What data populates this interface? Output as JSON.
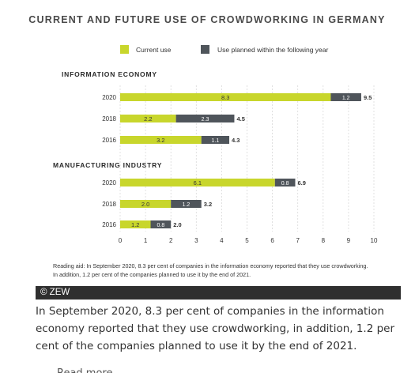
{
  "chart_data": {
    "type": "bar",
    "orientation": "horizontal",
    "stacked": true,
    "title": "CURRENT AND FUTURE USE OF CROWDWORKING IN GERMANY",
    "legend": {
      "position": "top",
      "entries": [
        "Current use",
        "Use planned within the following year"
      ]
    },
    "colors": {
      "current": "#c8d62c",
      "planned": "#4f555b"
    },
    "xlim": [
      0,
      10
    ],
    "x_ticks": [
      "0",
      "1",
      "2",
      "3",
      "4",
      "5",
      "6",
      "7",
      "8",
      "9",
      "10"
    ],
    "grid": true,
    "groups": [
      {
        "name": "INFORMATION ECONOMY",
        "bars": [
          {
            "category": "2020",
            "current": 8.3,
            "planned": 1.2,
            "total": 9.5,
            "current_label": "8.3",
            "planned_label": "1.2",
            "total_label": "9.5"
          },
          {
            "category": "2018",
            "current": 2.2,
            "planned": 2.3,
            "total": 4.5,
            "current_label": "2.2",
            "planned_label": "2.3",
            "total_label": "4.5"
          },
          {
            "category": "2016",
            "current": 3.2,
            "planned": 1.1,
            "total": 4.3,
            "current_label": "3.2",
            "planned_label": "1.1",
            "total_label": "4.3"
          }
        ]
      },
      {
        "name": "MANUFACTURING INDUSTRY",
        "bars": [
          {
            "category": "2020",
            "current": 6.1,
            "planned": 0.8,
            "total": 6.9,
            "current_label": "6.1",
            "planned_label": "0.8",
            "total_label": "6.9"
          },
          {
            "category": "2018",
            "current": 2.0,
            "planned": 1.2,
            "total": 3.2,
            "current_label": "2.0",
            "planned_label": "1.2",
            "total_label": "3.2"
          },
          {
            "category": "2016",
            "current": 1.2,
            "planned": 0.8,
            "total": 2.0,
            "current_label": "1.2",
            "planned_label": "0.8",
            "total_label": "2.0"
          }
        ]
      }
    ],
    "reading_aid": [
      "Reading aid: In September 2020, 8.3 per cent of companies in the information economy reported that they use crowdworking.",
      "In addition, 1.2 per cent of the companies planned to use it by the end of 2021."
    ]
  },
  "credit": "© ZEW",
  "caption": "In September 2020, 8.3 per cent of companies in the information economy reported that they use crowdworking, in addition, 1.2 per cent of the companies planned to use it by the end of 2021.",
  "overflow_text": "Read more"
}
